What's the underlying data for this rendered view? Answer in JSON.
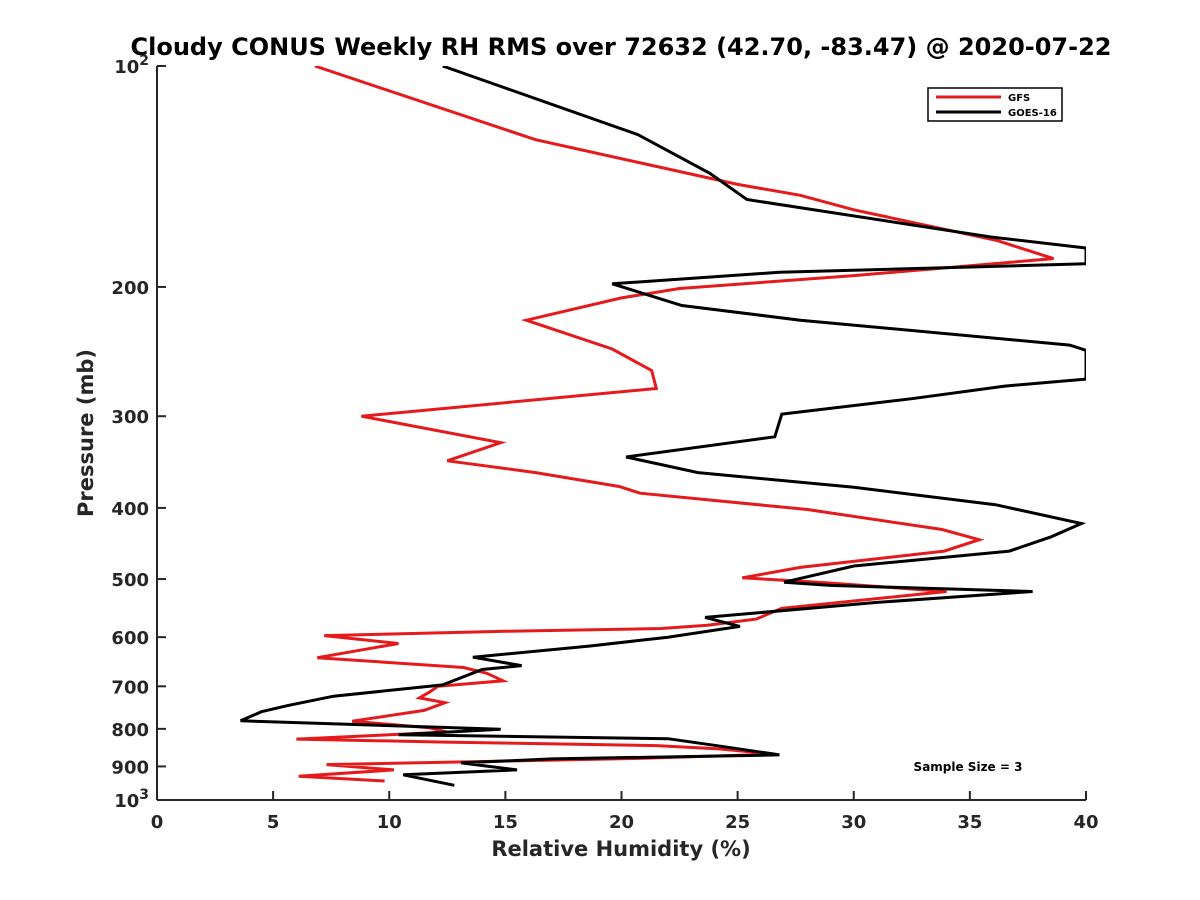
{
  "chart_data": {
    "type": "line",
    "title": "Cloudy CONUS Weekly RH RMS over 72632 (42.70, -83.47) @ 2020-07-22",
    "xlabel": "Relative Humidity (%)",
    "ylabel": "Pressure (mb)",
    "xlim": [
      0,
      40
    ],
    "ylim": [
      100,
      1000
    ],
    "y_scale": "log",
    "y_reversed": true,
    "x_ticks": [
      "0",
      "5",
      "10",
      "15",
      "20",
      "25",
      "30",
      "35",
      "40"
    ],
    "y_ticks": [
      {
        "value": 100,
        "base": "10",
        "exp": "2"
      },
      {
        "value": 200,
        "label": "200"
      },
      {
        "value": 300,
        "label": "300"
      },
      {
        "value": 400,
        "label": "400"
      },
      {
        "value": 500,
        "label": "500"
      },
      {
        "value": 600,
        "label": "600"
      },
      {
        "value": 700,
        "label": "700"
      },
      {
        "value": 800,
        "label": "800"
      },
      {
        "value": 900,
        "label": "900"
      },
      {
        "value": 1000,
        "base": "10",
        "exp": "3"
      }
    ],
    "legend_position": "top-right",
    "grid": false,
    "annotation": "Sample Size = 3",
    "series": [
      {
        "name": "GFS",
        "color": "#e41a1c",
        "points": [
          [
            6.8,
            100
          ],
          [
            16.3,
            126
          ],
          [
            25.0,
            145
          ],
          [
            27.7,
            150
          ],
          [
            30.0,
            157
          ],
          [
            36.2,
            173
          ],
          [
            38.6,
            183
          ],
          [
            30.0,
            193
          ],
          [
            22.5,
            201
          ],
          [
            20.0,
            207
          ],
          [
            15.9,
            222
          ],
          [
            19.6,
            243
          ],
          [
            21.3,
            260
          ],
          [
            21.5,
            275
          ],
          [
            8.8,
            300
          ],
          [
            14.8,
            326
          ],
          [
            12.5,
            345
          ],
          [
            16.3,
            358
          ],
          [
            19.9,
            374
          ],
          [
            20.8,
            382
          ],
          [
            28.0,
            402
          ],
          [
            33.8,
            428
          ],
          [
            35.4,
            442
          ],
          [
            33.9,
            458
          ],
          [
            27.7,
            482
          ],
          [
            25.2,
            498
          ],
          [
            28.8,
            506
          ],
          [
            34.0,
            520
          ],
          [
            26.9,
            548
          ],
          [
            25.8,
            567
          ],
          [
            23.7,
            578
          ],
          [
            21.7,
            584
          ],
          [
            15.0,
            589
          ],
          [
            7.2,
            597
          ],
          [
            10.4,
            612
          ],
          [
            6.9,
            640
          ],
          [
            13.2,
            660
          ],
          [
            14.2,
            672
          ],
          [
            14.9,
            688
          ],
          [
            12.1,
            700
          ],
          [
            11.7,
            714
          ],
          [
            11.3,
            726
          ],
          [
            12.4,
            737
          ],
          [
            11.5,
            755
          ],
          [
            8.4,
            781
          ],
          [
            11.7,
            797
          ],
          [
            12.5,
            808
          ],
          [
            6.0,
            826
          ],
          [
            12.4,
            834
          ],
          [
            21.5,
            843
          ],
          [
            24.2,
            852
          ],
          [
            26.6,
            866
          ],
          [
            20.5,
            878
          ],
          [
            7.3,
            895
          ],
          [
            10.2,
            910
          ],
          [
            6.1,
            928
          ],
          [
            9.8,
            942
          ]
        ]
      },
      {
        "name": "GOES-16",
        "color": "#000000",
        "points": [
          [
            12.3,
            100
          ],
          [
            20.7,
            124
          ],
          [
            23.8,
            140
          ],
          [
            25.4,
            152
          ],
          [
            35.9,
            171
          ],
          [
            40.0,
            177
          ],
          [
            40.0,
            186
          ],
          [
            26.8,
            191
          ],
          [
            19.6,
            198
          ],
          [
            22.6,
            212
          ],
          [
            27.7,
            222
          ],
          [
            39.3,
            240
          ],
          [
            40.0,
            244
          ],
          [
            40.0,
            267
          ],
          [
            36.5,
            273
          ],
          [
            32.5,
            284
          ],
          [
            26.9,
            298
          ],
          [
            26.6,
            320
          ],
          [
            20.2,
            341
          ],
          [
            23.3,
            358
          ],
          [
            30.0,
            375
          ],
          [
            36.1,
            396
          ],
          [
            39.8,
            420
          ],
          [
            38.5,
            438
          ],
          [
            36.7,
            458
          ],
          [
            30.0,
            480
          ],
          [
            27.0,
            505
          ],
          [
            29.0,
            510
          ],
          [
            37.7,
            520
          ],
          [
            31.0,
            538
          ],
          [
            23.6,
            564
          ],
          [
            25.1,
            580
          ],
          [
            22.0,
            600
          ],
          [
            18.6,
            617
          ],
          [
            13.6,
            639
          ],
          [
            15.7,
            656
          ],
          [
            14.0,
            664
          ],
          [
            12.3,
            697
          ],
          [
            7.6,
            722
          ],
          [
            5.6,
            744
          ],
          [
            4.5,
            758
          ],
          [
            3.6,
            780
          ],
          [
            14.8,
            801
          ],
          [
            10.4,
            815
          ],
          [
            22.0,
            825
          ],
          [
            24.3,
            845
          ],
          [
            26.8,
            868
          ],
          [
            17.0,
            879
          ],
          [
            13.1,
            890
          ],
          [
            15.5,
            910
          ],
          [
            10.6,
            924
          ],
          [
            12.8,
            955
          ]
        ]
      }
    ]
  }
}
